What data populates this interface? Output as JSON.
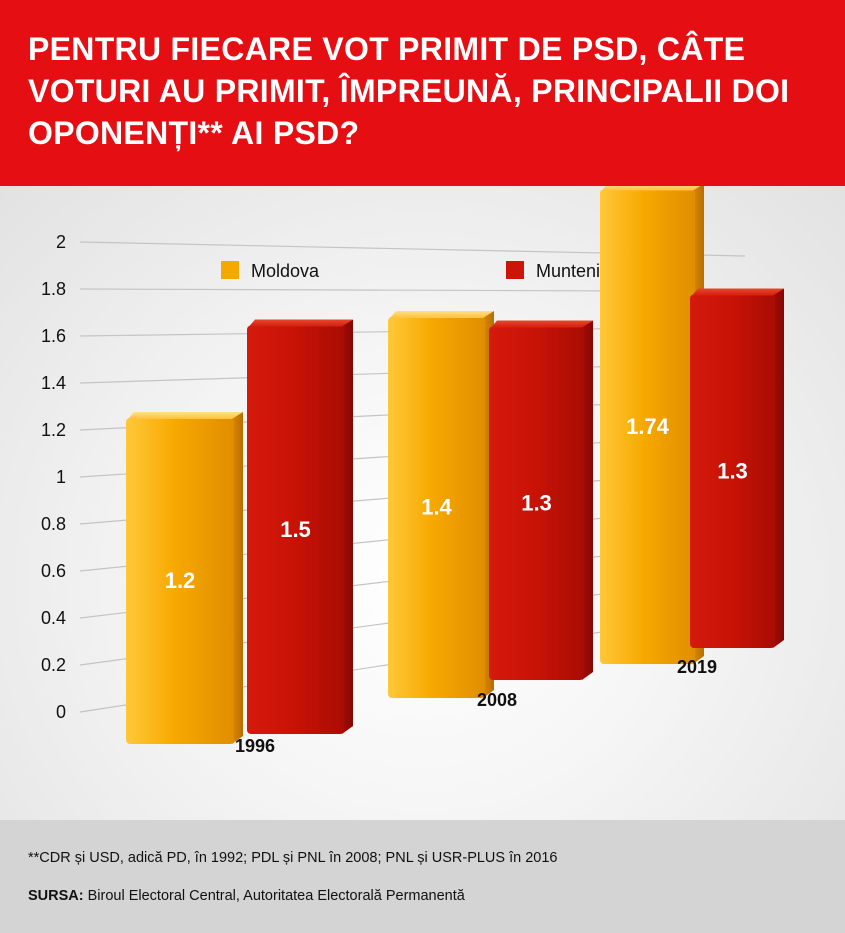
{
  "header": {
    "title": "PENTRU FIECARE VOT PRIMIT DE PSD, CÂTE VOTURI AU PRIMIT, ÎMPREUNĂ, PRINCIPALII DOI OPONENȚI** AI PSD?"
  },
  "chart_data": {
    "type": "bar",
    "title": "PENTRU FIECARE VOT PRIMIT DE PSD, CÂTE VOTURI AU PRIMIT, ÎMPREUNĂ, PRINCIPALII DOI OPONENȚI** AI PSD?",
    "categories": [
      "1996",
      "2008",
      "2019"
    ],
    "series": [
      {
        "name": "Moldova",
        "color": "#f5a800",
        "values": [
          1.2,
          1.4,
          1.74
        ],
        "labels": [
          "1.2",
          "1.4",
          "1.74"
        ]
      },
      {
        "name": "Muntenia",
        "color": "#cc1408",
        "values": [
          1.5,
          1.3,
          1.3
        ],
        "labels": [
          "1.5",
          "1.3",
          "1.3"
        ]
      }
    ],
    "yticks": [
      "2",
      "1.8",
      "1.6",
      "1.4",
      "1.2",
      "1",
      "0.8",
      "0.6",
      "0.4",
      "0.2",
      "0"
    ],
    "ylim": [
      0,
      2
    ],
    "xlabel": "",
    "ylabel": "",
    "legend_position": "top",
    "grid": true
  },
  "footer": {
    "footnote": "**CDR și USD, adică PD, în 1992; PDL și PNL în 2008; PNL și USR-PLUS în 2016",
    "source_label": "SURSA:",
    "source_text": " Biroul Electoral Central, Autoritatea Electorală Permanentă"
  },
  "colors": {
    "header_bg": "#e40e13",
    "moldova": "#f5a800",
    "muntenia": "#cc1408",
    "footer_bg": "#d4d4d4"
  }
}
